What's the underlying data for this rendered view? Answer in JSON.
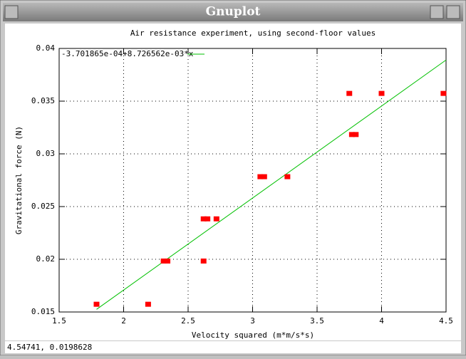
{
  "window": {
    "title": "Gnuplot",
    "status": "4.54741,  0.0198628"
  },
  "chart_data": {
    "type": "scatter",
    "title": "Air resistance experiment, using second-floor values",
    "x_label": "Velocity squared (m*m/s*s)",
    "y_label": "Gravitational force (N)",
    "xlim": [
      1.5,
      4.5
    ],
    "xticks": [
      1.5,
      2,
      2.5,
      3,
      3.5,
      4,
      4.5
    ],
    "ylim": [
      0.015,
      0.04
    ],
    "yticks": [
      0.015,
      0.02,
      0.025,
      0.03,
      0.035,
      0.04
    ],
    "grid": true,
    "legend": "top-left",
    "series": [
      {
        "type": "line",
        "name": "-3.701865e-04+8.726562e-03*x",
        "color": "#00c000",
        "x": [
          1.79,
          4.5
        ],
        "values": [
          0.01525,
          0.0389
        ]
      },
      {
        "type": "scatter",
        "color": "#ff0000",
        "x": [
          1.79,
          2.19,
          2.31,
          2.34,
          2.62,
          2.62,
          2.65,
          2.72,
          3.06,
          3.09,
          3.27,
          3.75,
          3.77,
          3.8,
          4.0,
          4.48
        ],
        "values": [
          0.0157,
          0.0157,
          0.0198,
          0.0198,
          0.0198,
          0.0238,
          0.0238,
          0.0238,
          0.0278,
          0.0278,
          0.0278,
          0.0357,
          0.0318,
          0.0318,
          0.0357,
          0.0357
        ]
      }
    ]
  }
}
